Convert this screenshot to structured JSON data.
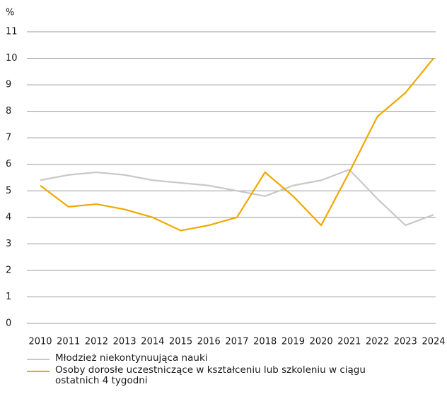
{
  "chart_data": {
    "type": "line",
    "ylabel": "%",
    "categories": [
      "2010",
      "2011",
      "2012",
      "2013",
      "2014",
      "2015",
      "2016",
      "2017",
      "2018",
      "2019",
      "2020",
      "2021",
      "2022",
      "2023",
      "2024"
    ],
    "series": [
      {
        "name": "Młodzież niekontynuująca nauki",
        "color": "#c8c8c8",
        "values": [
          5.4,
          5.6,
          5.7,
          5.6,
          5.4,
          5.3,
          5.2,
          5.0,
          4.8,
          5.2,
          5.4,
          5.8,
          4.7,
          3.7,
          4.1
        ]
      },
      {
        "name": "Osoby dorosłe uczestniczące w kształceniu lub szkoleniu w ciągu ostatnich 4 tygodni",
        "color": "#f0a800",
        "values": [
          5.2,
          4.4,
          4.5,
          4.3,
          4.0,
          3.5,
          3.7,
          4.0,
          5.7,
          4.8,
          3.7,
          5.7,
          7.8,
          8.7,
          10.0
        ]
      }
    ],
    "ylim": [
      0,
      11
    ],
    "yticks": [
      0,
      1,
      2,
      3,
      4,
      5,
      6,
      7,
      8,
      9,
      10,
      11
    ],
    "grid": true
  }
}
